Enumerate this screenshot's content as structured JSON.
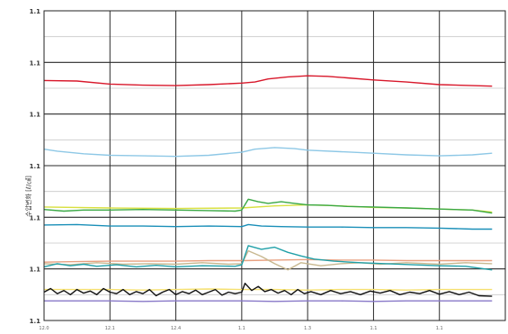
{
  "chart_data": {
    "type": "line",
    "title": "",
    "xlabel": "",
    "ylabel": "수압변화 [ℓ/㎠]",
    "y_tick_labels": [
      "1.1",
      "1.1",
      "1.1",
      "1.1",
      "1.1",
      "1.1",
      "1.1"
    ],
    "x_tick_labels": [
      "12.0",
      "12.1",
      "12.4",
      "1.1",
      "1.3",
      "1.1",
      "1.1"
    ],
    "ylim": [
      0,
      6
    ],
    "xlim": [
      0,
      7
    ],
    "grid": true,
    "legend": "none",
    "series": [
      {
        "color": "#d8182b",
        "points": [
          [
            0,
            4.65
          ],
          [
            0.5,
            4.64
          ],
          [
            1,
            4.58
          ],
          [
            1.5,
            4.56
          ],
          [
            2,
            4.55
          ],
          [
            2.5,
            4.57
          ],
          [
            3,
            4.6
          ],
          [
            3.2,
            4.62
          ],
          [
            3.4,
            4.68
          ],
          [
            3.7,
            4.72
          ],
          [
            4,
            4.74
          ],
          [
            4.3,
            4.73
          ],
          [
            4.6,
            4.7
          ],
          [
            5,
            4.66
          ],
          [
            5.5,
            4.62
          ],
          [
            6,
            4.57
          ],
          [
            6.5,
            4.55
          ],
          [
            6.8,
            4.54
          ]
        ]
      },
      {
        "color": "#8ec8e6",
        "points": [
          [
            0,
            3.32
          ],
          [
            0.2,
            3.28
          ],
          [
            0.6,
            3.23
          ],
          [
            1,
            3.2
          ],
          [
            1.5,
            3.19
          ],
          [
            2,
            3.18
          ],
          [
            2.5,
            3.2
          ],
          [
            3,
            3.26
          ],
          [
            3.2,
            3.32
          ],
          [
            3.5,
            3.35
          ],
          [
            3.8,
            3.33
          ],
          [
            4,
            3.3
          ],
          [
            4.5,
            3.27
          ],
          [
            5,
            3.24
          ],
          [
            5.5,
            3.21
          ],
          [
            6,
            3.19
          ],
          [
            6.5,
            3.21
          ],
          [
            6.8,
            3.24
          ]
        ]
      },
      {
        "color": "#d8e040",
        "points": [
          [
            0,
            2.2
          ],
          [
            1,
            2.18
          ],
          [
            2,
            2.17
          ],
          [
            3,
            2.18
          ],
          [
            3.5,
            2.22
          ],
          [
            4,
            2.24
          ],
          [
            4.5,
            2.22
          ],
          [
            5,
            2.19
          ],
          [
            5.5,
            2.18
          ],
          [
            6,
            2.16
          ],
          [
            6.5,
            2.14
          ],
          [
            6.8,
            2.1
          ]
        ]
      },
      {
        "color": "#3aa845",
        "points": [
          [
            0,
            2.15
          ],
          [
            0.3,
            2.12
          ],
          [
            0.6,
            2.14
          ],
          [
            1,
            2.14
          ],
          [
            1.5,
            2.15
          ],
          [
            2,
            2.14
          ],
          [
            2.5,
            2.13
          ],
          [
            2.9,
            2.12
          ],
          [
            3,
            2.14
          ],
          [
            3.1,
            2.35
          ],
          [
            3.25,
            2.3
          ],
          [
            3.4,
            2.27
          ],
          [
            3.6,
            2.3
          ],
          [
            3.8,
            2.27
          ],
          [
            4,
            2.24
          ],
          [
            4.3,
            2.23
          ],
          [
            4.6,
            2.21
          ],
          [
            5,
            2.2
          ],
          [
            5.5,
            2.18
          ],
          [
            6,
            2.16
          ],
          [
            6.5,
            2.14
          ],
          [
            6.8,
            2.08
          ]
        ]
      },
      {
        "color": "#1a8fb8",
        "points": [
          [
            0,
            1.85
          ],
          [
            0.5,
            1.86
          ],
          [
            1,
            1.83
          ],
          [
            1.5,
            1.83
          ],
          [
            2,
            1.82
          ],
          [
            2.5,
            1.83
          ],
          [
            3,
            1.82
          ],
          [
            3.1,
            1.86
          ],
          [
            3.3,
            1.83
          ],
          [
            3.6,
            1.82
          ],
          [
            4,
            1.81
          ],
          [
            4.5,
            1.81
          ],
          [
            5,
            1.8
          ],
          [
            5.5,
            1.8
          ],
          [
            6,
            1.79
          ],
          [
            6.5,
            1.77
          ],
          [
            6.8,
            1.77
          ]
        ]
      },
      {
        "color": "#e8a080",
        "points": [
          [
            0,
            1.13
          ],
          [
            0.5,
            1.14
          ],
          [
            1,
            1.15
          ],
          [
            1.5,
            1.15
          ],
          [
            2,
            1.15
          ],
          [
            2.5,
            1.16
          ],
          [
            3,
            1.16
          ],
          [
            3.5,
            1.17
          ],
          [
            4,
            1.18
          ],
          [
            4.5,
            1.17
          ],
          [
            5,
            1.17
          ],
          [
            5.5,
            1.16
          ],
          [
            6,
            1.16
          ],
          [
            6.5,
            1.16
          ],
          [
            6.8,
            1.16
          ]
        ]
      },
      {
        "color": "#c8b890",
        "points": [
          [
            0,
            1.1
          ],
          [
            0.4,
            1.08
          ],
          [
            0.8,
            1.12
          ],
          [
            1.2,
            1.09
          ],
          [
            1.6,
            1.1
          ],
          [
            2,
            1.09
          ],
          [
            2.4,
            1.12
          ],
          [
            2.8,
            1.09
          ],
          [
            3,
            1.1
          ],
          [
            3.1,
            1.35
          ],
          [
            3.3,
            1.24
          ],
          [
            3.5,
            1.1
          ],
          [
            3.7,
            0.98
          ],
          [
            3.9,
            1.12
          ],
          [
            4.2,
            1.06
          ],
          [
            4.5,
            1.1
          ],
          [
            4.8,
            1.12
          ],
          [
            5.1,
            1.09
          ],
          [
            5.5,
            1.12
          ],
          [
            6,
            1.09
          ],
          [
            6.4,
            1.12
          ],
          [
            6.8,
            1.1
          ]
        ]
      },
      {
        "color": "#20a0a8",
        "points": [
          [
            0,
            1.04
          ],
          [
            0.2,
            1.1
          ],
          [
            0.4,
            1.06
          ],
          [
            0.6,
            1.09
          ],
          [
            0.8,
            1.05
          ],
          [
            1.1,
            1.08
          ],
          [
            1.4,
            1.04
          ],
          [
            1.7,
            1.07
          ],
          [
            2,
            1.04
          ],
          [
            2.4,
            1.06
          ],
          [
            2.9,
            1.05
          ],
          [
            3,
            1.08
          ],
          [
            3.1,
            1.45
          ],
          [
            3.3,
            1.38
          ],
          [
            3.5,
            1.42
          ],
          [
            3.7,
            1.32
          ],
          [
            3.9,
            1.25
          ],
          [
            4.1,
            1.19
          ],
          [
            4.4,
            1.15
          ],
          [
            4.8,
            1.12
          ],
          [
            5.2,
            1.1
          ],
          [
            5.6,
            1.08
          ],
          [
            6,
            1.06
          ],
          [
            6.4,
            1.05
          ],
          [
            6.8,
            0.98
          ]
        ]
      },
      {
        "color": "#f5e070",
        "points": [
          [
            0,
            0.6
          ],
          [
            0.5,
            0.6
          ],
          [
            1,
            0.6
          ],
          [
            1.5,
            0.59
          ],
          [
            2,
            0.6
          ],
          [
            2.5,
            0.61
          ],
          [
            3,
            0.6
          ],
          [
            3.5,
            0.6
          ],
          [
            4,
            0.59
          ],
          [
            4.5,
            0.6
          ],
          [
            5,
            0.6
          ],
          [
            5.5,
            0.59
          ],
          [
            6,
            0.6
          ],
          [
            6.5,
            0.6
          ],
          [
            6.8,
            0.6
          ]
        ]
      },
      {
        "color": "#111111",
        "points": [
          [
            0,
            0.55
          ],
          [
            0.1,
            0.62
          ],
          [
            0.2,
            0.52
          ],
          [
            0.3,
            0.58
          ],
          [
            0.4,
            0.5
          ],
          [
            0.5,
            0.6
          ],
          [
            0.6,
            0.53
          ],
          [
            0.7,
            0.57
          ],
          [
            0.8,
            0.5
          ],
          [
            0.9,
            0.62
          ],
          [
            1,
            0.55
          ],
          [
            1.1,
            0.52
          ],
          [
            1.2,
            0.6
          ],
          [
            1.3,
            0.5
          ],
          [
            1.4,
            0.56
          ],
          [
            1.5,
            0.52
          ],
          [
            1.6,
            0.6
          ],
          [
            1.7,
            0.48
          ],
          [
            1.8,
            0.55
          ],
          [
            1.9,
            0.6
          ],
          [
            2,
            0.5
          ],
          [
            2.1,
            0.56
          ],
          [
            2.2,
            0.52
          ],
          [
            2.3,
            0.59
          ],
          [
            2.4,
            0.5
          ],
          [
            2.5,
            0.55
          ],
          [
            2.6,
            0.6
          ],
          [
            2.7,
            0.49
          ],
          [
            2.8,
            0.55
          ],
          [
            2.9,
            0.52
          ],
          [
            3,
            0.55
          ],
          [
            3.05,
            0.72
          ],
          [
            3.15,
            0.58
          ],
          [
            3.25,
            0.66
          ],
          [
            3.35,
            0.56
          ],
          [
            3.45,
            0.6
          ],
          [
            3.55,
            0.53
          ],
          [
            3.65,
            0.58
          ],
          [
            3.75,
            0.5
          ],
          [
            3.85,
            0.6
          ],
          [
            3.95,
            0.52
          ],
          [
            4.05,
            0.56
          ],
          [
            4.2,
            0.5
          ],
          [
            4.35,
            0.58
          ],
          [
            4.5,
            0.52
          ],
          [
            4.65,
            0.56
          ],
          [
            4.8,
            0.5
          ],
          [
            4.95,
            0.57
          ],
          [
            5.1,
            0.53
          ],
          [
            5.25,
            0.58
          ],
          [
            5.4,
            0.5
          ],
          [
            5.55,
            0.55
          ],
          [
            5.7,
            0.52
          ],
          [
            5.85,
            0.58
          ],
          [
            6,
            0.51
          ],
          [
            6.15,
            0.56
          ],
          [
            6.3,
            0.5
          ],
          [
            6.45,
            0.55
          ],
          [
            6.6,
            0.48
          ],
          [
            6.8,
            0.47
          ]
        ]
      },
      {
        "color": "#8878c8",
        "points": [
          [
            0,
            0.38
          ],
          [
            0.5,
            0.38
          ],
          [
            1,
            0.38
          ],
          [
            1.5,
            0.37
          ],
          [
            2,
            0.38
          ],
          [
            2.5,
            0.38
          ],
          [
            3,
            0.38
          ],
          [
            3.5,
            0.37
          ],
          [
            4,
            0.38
          ],
          [
            4.5,
            0.38
          ],
          [
            5,
            0.37
          ],
          [
            5.5,
            0.38
          ],
          [
            6,
            0.38
          ],
          [
            6.5,
            0.38
          ],
          [
            6.8,
            0.38
          ]
        ]
      }
    ]
  }
}
